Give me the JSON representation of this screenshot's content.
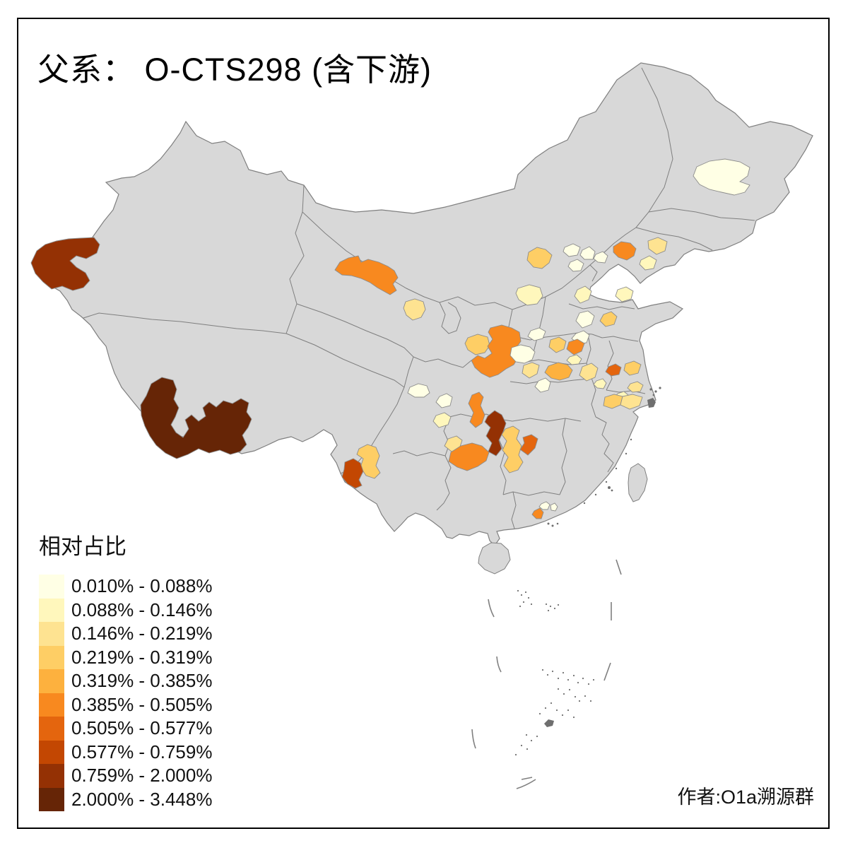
{
  "title": "父系： O-CTS298 (含下游)",
  "attribution": "作者:O1a溯源群",
  "legend": {
    "title": "相对占比"
  },
  "map": {
    "land_fill": "#D8D8D8",
    "border_color": "#7F7F7F",
    "region_border": "#8C8C8C",
    "frame_color": "#000000",
    "background": "#FFFFFF",
    "urban_marker_fill": "#6F6F6F"
  },
  "chart_data": {
    "type": "choropleth",
    "title": "父系： O-CTS298 (含下游)",
    "legend_title": "相对占比",
    "unit": "%",
    "region_level": "prefecture",
    "no_data_fill": "#D8D8D8",
    "classes": [
      {
        "label": "0.010% - 0.088%",
        "color": "#FFFFE5"
      },
      {
        "label": "0.088% - 0.146%",
        "color": "#FFF7BC"
      },
      {
        "label": "0.146% - 0.219%",
        "color": "#FEE391"
      },
      {
        "label": "0.219% - 0.319%",
        "color": "#FECE65"
      },
      {
        "label": "0.319% - 0.385%",
        "color": "#FDB13E"
      },
      {
        "label": "0.385% - 0.505%",
        "color": "#F8891F"
      },
      {
        "label": "0.505% - 0.577%",
        "color": "#E4650E"
      },
      {
        "label": "0.577% - 0.759%",
        "color": "#C34702"
      },
      {
        "label": "0.759% - 2.000%",
        "color": "#943104"
      },
      {
        "label": "2.000% - 3.448%",
        "color": "#662506"
      }
    ],
    "regions": [
      {
        "id": "xinjiang-kashgar",
        "class": 9
      },
      {
        "id": "tibet-shigatse-lhasa",
        "class": 10
      },
      {
        "id": "gansu-hexi-corridor",
        "class": 6
      },
      {
        "id": "gansu-lanzhou",
        "class": 3
      },
      {
        "id": "heilongjiang-harbin",
        "class": 1
      },
      {
        "id": "liaoning-panjin",
        "class": 6
      },
      {
        "id": "liaoning-fushun",
        "class": 3
      },
      {
        "id": "liaoning-dalian",
        "class": 2
      },
      {
        "id": "hebei-zhangjiakou",
        "class": 4
      },
      {
        "id": "beijing-a",
        "class": 1
      },
      {
        "id": "beijing-b",
        "class": 1
      },
      {
        "id": "beijing-c",
        "class": 1
      },
      {
        "id": "hebei-tangshan",
        "class": 1
      },
      {
        "id": "shanxi-xinzhou",
        "class": 2
      },
      {
        "id": "hebei-shijiazhuang",
        "class": 2
      },
      {
        "id": "shandong-binzhou",
        "class": 2
      },
      {
        "id": "shandong-dezhou",
        "class": 1
      },
      {
        "id": "shandong-zibo",
        "class": 4
      },
      {
        "id": "shandong-jining",
        "class": 1
      },
      {
        "id": "shanxi-linfen",
        "class": 1
      },
      {
        "id": "gansu-pingliang",
        "class": 4
      },
      {
        "id": "shaanxi-guanzhong",
        "class": 6
      },
      {
        "id": "shaanxi-shangluo",
        "class": 1
      },
      {
        "id": "hubei-shiyan",
        "class": 3
      },
      {
        "id": "henan-luoyang",
        "class": 4
      },
      {
        "id": "henan-zhengzhou",
        "class": 6
      },
      {
        "id": "henan-pingdingshan",
        "class": 2
      },
      {
        "id": "henan-nanyang",
        "class": 5
      },
      {
        "id": "hubei-suizhou",
        "class": 1
      },
      {
        "id": "anhui-luan",
        "class": 3
      },
      {
        "id": "anhui-anqing",
        "class": 2
      },
      {
        "id": "jiangsu-nanjing",
        "class": 7
      },
      {
        "id": "jiangsu-nantong",
        "class": 4
      },
      {
        "id": "jiangsu-suzhou",
        "class": 3
      },
      {
        "id": "zhejiang-huzhou",
        "class": 2
      },
      {
        "id": "zhejiang-hangzhou",
        "class": 4
      },
      {
        "id": "zhejiang-jiaxing",
        "class": 3
      },
      {
        "id": "sichuan-chengdu",
        "class": 1
      },
      {
        "id": "sichuan-meishan",
        "class": 1
      },
      {
        "id": "sichuan-leshan",
        "class": 2
      },
      {
        "id": "sichuan-zigong-luzhou",
        "class": 6
      },
      {
        "id": "chongqing",
        "class": 9
      },
      {
        "id": "guizhou-bijie",
        "class": 3
      },
      {
        "id": "guizhou-zunyi-guiyang",
        "class": 6
      },
      {
        "id": "hunan-huaihua",
        "class": 4
      },
      {
        "id": "hunan-shaoyang",
        "class": 7
      },
      {
        "id": "yunnan-dali",
        "class": 4
      },
      {
        "id": "yunnan-baoshan",
        "class": 8
      },
      {
        "id": "guangdong-shanwei",
        "class": 6
      },
      {
        "id": "guangdong-huizhou",
        "class": 1
      },
      {
        "id": "guangdong-heyuan",
        "class": 1
      }
    ]
  }
}
